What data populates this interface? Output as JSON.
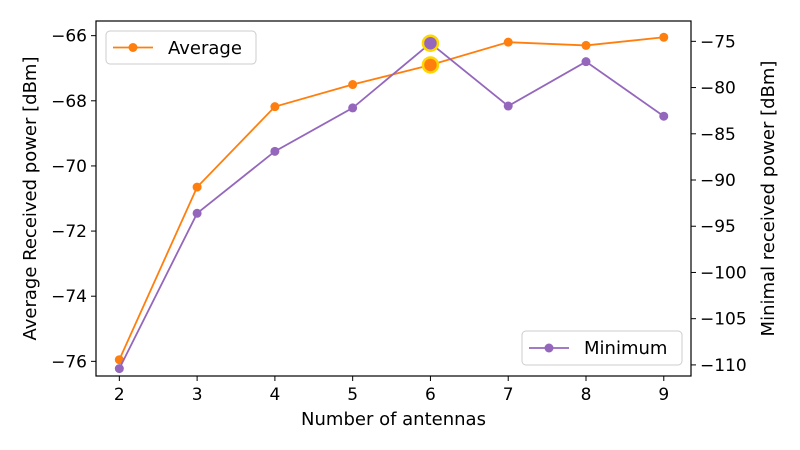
{
  "chart_data": {
    "type": "line",
    "title": "",
    "xlabel": "Number of antennas",
    "ylabel_left": "Average Received power [dBm]",
    "ylabel_right": "Minimal received power [dBm]",
    "x": [
      2,
      3,
      4,
      5,
      6,
      7,
      8,
      9
    ],
    "xlim": [
      1.7,
      9.35
    ],
    "y_left_lim": [
      -76.45,
      -65.55
    ],
    "y_right_lim": [
      -111.2,
      -72.8
    ],
    "x_ticks": [
      "2",
      "3",
      "4",
      "5",
      "6",
      "7",
      "8",
      "9"
    ],
    "y_left_ticks": [
      -66,
      -68,
      -70,
      -72,
      -74,
      -76
    ],
    "y_left_tick_labels": [
      "−66",
      "−68",
      "−70",
      "−72",
      "−74",
      "−76"
    ],
    "y_right_ticks": [
      -75,
      -80,
      -85,
      -90,
      -95,
      -100,
      -105,
      -110
    ],
    "y_right_tick_labels": [
      "−75",
      "−80",
      "−85",
      "−90",
      "−95",
      "−100",
      "−105",
      "−110"
    ],
    "series": [
      {
        "name": "Average",
        "axis": "left",
        "color": "#ff7f0e",
        "values": [
          -75.95,
          -70.65,
          -68.18,
          -67.5,
          -66.9,
          -66.2,
          -66.3,
          -66.05
        ],
        "highlight_x": 6
      },
      {
        "name": "Minimum",
        "axis": "right",
        "color": "#9467bd",
        "values": [
          -110.4,
          -93.6,
          -86.9,
          -82.2,
          -75.2,
          -82.0,
          -77.2,
          -83.1
        ],
        "highlight_x": 6
      }
    ],
    "highlight_color": "#ffd700",
    "legends": [
      {
        "series": "Average",
        "placement": "upper-left"
      },
      {
        "series": "Minimum",
        "placement": "lower-right"
      }
    ],
    "grid": false
  }
}
